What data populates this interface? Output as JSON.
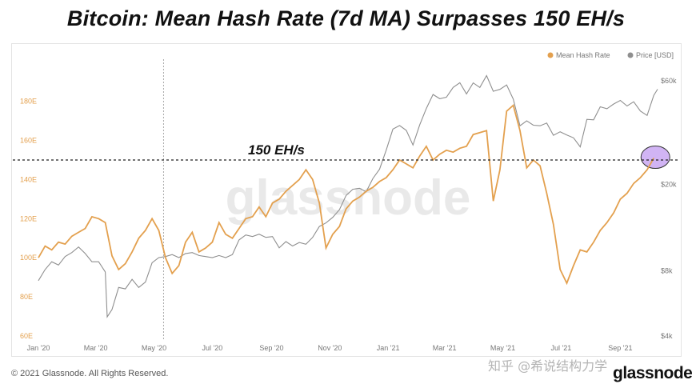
{
  "title": "Bitcoin: Mean Hash Rate (7d MA) Surpasses 150 EH/s",
  "watermark": "glassnode",
  "footer": {
    "copyright": "© 2021 Glassnode. All Rights Reserved.",
    "zhihu": "知乎 @希说结构力学",
    "brand": "glassnode"
  },
  "colors": {
    "hash": "#e3a04e",
    "price": "#8f8f8f",
    "highlight": "#c9a7f2"
  },
  "chart_data": {
    "type": "line",
    "x_ticks": [
      "Jan '20",
      "Mar '20",
      "May '20",
      "Jul '20",
      "Sep '20",
      "Nov '20",
      "Jan '21",
      "Mar '21",
      "May '21",
      "Jul '21",
      "Sep '21"
    ],
    "y_left_ticks": [
      "60E",
      "80E",
      "100E",
      "120E",
      "140E",
      "160E",
      "180E"
    ],
    "y_left_range": [
      60,
      195
    ],
    "y_right_ticks": [
      "$4k",
      "$8k",
      "$20k",
      "$60k"
    ],
    "y_right_scale": "log",
    "y_right_range": [
      4000,
      66000
    ],
    "legend": {
      "placement": "top-right",
      "entries": [
        "Mean Hash Rate",
        "Price [USD]"
      ]
    },
    "annotation": {
      "text": "150 EH/s",
      "value": 150
    },
    "vertical_marker": "2020-05-11",
    "series": [
      {
        "name": "Mean Hash Rate",
        "axis": "left",
        "points": [
          [
            "2020-01-01",
            100
          ],
          [
            "2020-01-08",
            106
          ],
          [
            "2020-01-15",
            104
          ],
          [
            "2020-01-22",
            108
          ],
          [
            "2020-01-29",
            107
          ],
          [
            "2020-02-05",
            111
          ],
          [
            "2020-02-12",
            113
          ],
          [
            "2020-02-19",
            115
          ],
          [
            "2020-02-26",
            121
          ],
          [
            "2020-03-04",
            120
          ],
          [
            "2020-03-11",
            118
          ],
          [
            "2020-03-18",
            101
          ],
          [
            "2020-03-25",
            94
          ],
          [
            "2020-04-01",
            97
          ],
          [
            "2020-04-08",
            103
          ],
          [
            "2020-04-15",
            110
          ],
          [
            "2020-04-22",
            114
          ],
          [
            "2020-04-29",
            120
          ],
          [
            "2020-05-06",
            114
          ],
          [
            "2020-05-13",
            100
          ],
          [
            "2020-05-20",
            92
          ],
          [
            "2020-05-27",
            96
          ],
          [
            "2020-06-03",
            108
          ],
          [
            "2020-06-10",
            113
          ],
          [
            "2020-06-17",
            103
          ],
          [
            "2020-06-24",
            105
          ],
          [
            "2020-07-01",
            108
          ],
          [
            "2020-07-08",
            118
          ],
          [
            "2020-07-15",
            112
          ],
          [
            "2020-07-22",
            110
          ],
          [
            "2020-07-29",
            115
          ],
          [
            "2020-08-05",
            120
          ],
          [
            "2020-08-12",
            121
          ],
          [
            "2020-08-19",
            126
          ],
          [
            "2020-08-26",
            121
          ],
          [
            "2020-09-02",
            128
          ],
          [
            "2020-09-09",
            130
          ],
          [
            "2020-09-16",
            134
          ],
          [
            "2020-09-23",
            137
          ],
          [
            "2020-09-30",
            140
          ],
          [
            "2020-10-07",
            145
          ],
          [
            "2020-10-14",
            140
          ],
          [
            "2020-10-21",
            128
          ],
          [
            "2020-10-28",
            105
          ],
          [
            "2020-11-04",
            112
          ],
          [
            "2020-11-11",
            116
          ],
          [
            "2020-11-18",
            125
          ],
          [
            "2020-11-25",
            129
          ],
          [
            "2020-12-02",
            131
          ],
          [
            "2020-12-09",
            134
          ],
          [
            "2020-12-16",
            136
          ],
          [
            "2020-12-23",
            139
          ],
          [
            "2020-12-30",
            141
          ],
          [
            "2021-01-06",
            145
          ],
          [
            "2021-01-13",
            150
          ],
          [
            "2021-01-20",
            148
          ],
          [
            "2021-01-27",
            146
          ],
          [
            "2021-02-03",
            152
          ],
          [
            "2021-02-10",
            157
          ],
          [
            "2021-02-17",
            150
          ],
          [
            "2021-02-24",
            153
          ],
          [
            "2021-03-03",
            155
          ],
          [
            "2021-03-10",
            154
          ],
          [
            "2021-03-17",
            156
          ],
          [
            "2021-03-24",
            157
          ],
          [
            "2021-03-31",
            163
          ],
          [
            "2021-04-07",
            164
          ],
          [
            "2021-04-14",
            165
          ],
          [
            "2021-04-21",
            129
          ],
          [
            "2021-04-28",
            145
          ],
          [
            "2021-05-05",
            175
          ],
          [
            "2021-05-12",
            178
          ],
          [
            "2021-05-19",
            165
          ],
          [
            "2021-05-26",
            146
          ],
          [
            "2021-06-02",
            150
          ],
          [
            "2021-06-09",
            147
          ],
          [
            "2021-06-16",
            133
          ],
          [
            "2021-06-23",
            117
          ],
          [
            "2021-06-30",
            94
          ],
          [
            "2021-07-07",
            87
          ],
          [
            "2021-07-14",
            96
          ],
          [
            "2021-07-21",
            104
          ],
          [
            "2021-07-28",
            103
          ],
          [
            "2021-08-04",
            108
          ],
          [
            "2021-08-11",
            114
          ],
          [
            "2021-08-18",
            118
          ],
          [
            "2021-08-25",
            123
          ],
          [
            "2021-09-01",
            130
          ],
          [
            "2021-09-08",
            133
          ],
          [
            "2021-09-15",
            138
          ],
          [
            "2021-09-22",
            141
          ],
          [
            "2021-09-29",
            145
          ],
          [
            "2021-10-06",
            151
          ]
        ]
      },
      {
        "name": "Price [USD]",
        "axis": "right",
        "points": [
          [
            "2020-01-01",
            7200
          ],
          [
            "2020-01-08",
            8100
          ],
          [
            "2020-01-15",
            8800
          ],
          [
            "2020-01-22",
            8500
          ],
          [
            "2020-01-29",
            9300
          ],
          [
            "2020-02-05",
            9700
          ],
          [
            "2020-02-12",
            10300
          ],
          [
            "2020-02-19",
            9600
          ],
          [
            "2020-02-26",
            8800
          ],
          [
            "2020-03-04",
            8800
          ],
          [
            "2020-03-11",
            7900
          ],
          [
            "2020-03-13",
            4900
          ],
          [
            "2020-03-18",
            5300
          ],
          [
            "2020-03-25",
            6700
          ],
          [
            "2020-04-01",
            6600
          ],
          [
            "2020-04-08",
            7300
          ],
          [
            "2020-04-15",
            6700
          ],
          [
            "2020-04-22",
            7100
          ],
          [
            "2020-04-29",
            8700
          ],
          [
            "2020-05-06",
            9200
          ],
          [
            "2020-05-13",
            9300
          ],
          [
            "2020-05-20",
            9500
          ],
          [
            "2020-05-27",
            9200
          ],
          [
            "2020-06-03",
            9600
          ],
          [
            "2020-06-10",
            9700
          ],
          [
            "2020-06-17",
            9400
          ],
          [
            "2020-06-24",
            9300
          ],
          [
            "2020-07-01",
            9200
          ],
          [
            "2020-07-08",
            9400
          ],
          [
            "2020-07-15",
            9200
          ],
          [
            "2020-07-22",
            9500
          ],
          [
            "2020-07-29",
            11100
          ],
          [
            "2020-08-05",
            11700
          ],
          [
            "2020-08-12",
            11500
          ],
          [
            "2020-08-19",
            11800
          ],
          [
            "2020-08-26",
            11400
          ],
          [
            "2020-09-02",
            11500
          ],
          [
            "2020-09-09",
            10200
          ],
          [
            "2020-09-16",
            10900
          ],
          [
            "2020-09-23",
            10400
          ],
          [
            "2020-09-30",
            10800
          ],
          [
            "2020-10-07",
            10600
          ],
          [
            "2020-10-14",
            11400
          ],
          [
            "2020-10-21",
            12800
          ],
          [
            "2020-10-28",
            13300
          ],
          [
            "2020-11-04",
            14100
          ],
          [
            "2020-11-11",
            15300
          ],
          [
            "2020-11-18",
            17800
          ],
          [
            "2020-11-25",
            19000
          ],
          [
            "2020-12-02",
            19200
          ],
          [
            "2020-12-09",
            18500
          ],
          [
            "2020-12-16",
            21300
          ],
          [
            "2020-12-23",
            23500
          ],
          [
            "2020-12-30",
            28800
          ],
          [
            "2021-01-06",
            36000
          ],
          [
            "2021-01-13",
            37400
          ],
          [
            "2021-01-20",
            35500
          ],
          [
            "2021-01-27",
            30400
          ],
          [
            "2021-02-03",
            37600
          ],
          [
            "2021-02-10",
            44800
          ],
          [
            "2021-02-17",
            52000
          ],
          [
            "2021-02-24",
            49700
          ],
          [
            "2021-03-03",
            50500
          ],
          [
            "2021-03-10",
            56000
          ],
          [
            "2021-03-17",
            58900
          ],
          [
            "2021-03-24",
            52300
          ],
          [
            "2021-03-31",
            58800
          ],
          [
            "2021-04-07",
            56000
          ],
          [
            "2021-04-14",
            63500
          ],
          [
            "2021-04-21",
            53800
          ],
          [
            "2021-04-28",
            54900
          ],
          [
            "2021-05-05",
            57500
          ],
          [
            "2021-05-12",
            49500
          ],
          [
            "2021-05-19",
            37300
          ],
          [
            "2021-05-26",
            39300
          ],
          [
            "2021-06-02",
            37500
          ],
          [
            "2021-06-09",
            37300
          ],
          [
            "2021-06-16",
            38400
          ],
          [
            "2021-06-23",
            33700
          ],
          [
            "2021-06-30",
            35000
          ],
          [
            "2021-07-07",
            33800
          ],
          [
            "2021-07-14",
            32800
          ],
          [
            "2021-07-21",
            29800
          ],
          [
            "2021-07-28",
            39900
          ],
          [
            "2021-08-04",
            39700
          ],
          [
            "2021-08-11",
            45600
          ],
          [
            "2021-08-18",
            44700
          ],
          [
            "2021-08-25",
            47000
          ],
          [
            "2021-09-01",
            48800
          ],
          [
            "2021-09-08",
            46000
          ],
          [
            "2021-09-15",
            48100
          ],
          [
            "2021-09-22",
            43600
          ],
          [
            "2021-09-29",
            41600
          ],
          [
            "2021-10-06",
            51500
          ],
          [
            "2021-10-10",
            55000
          ]
        ]
      }
    ]
  }
}
